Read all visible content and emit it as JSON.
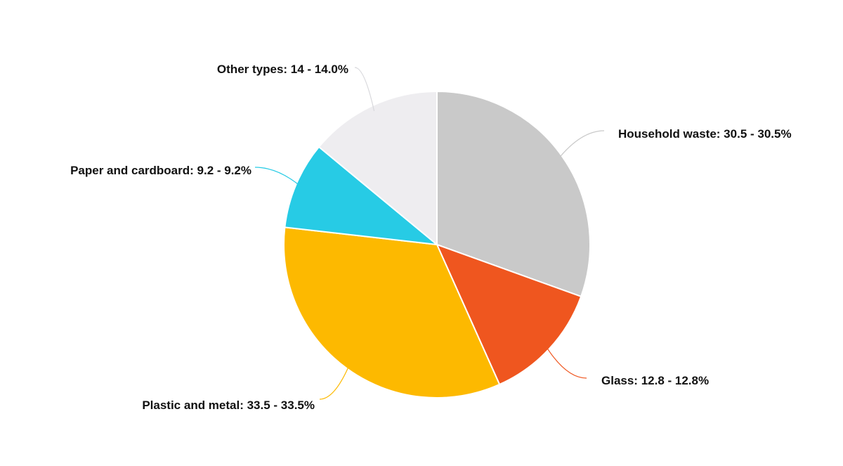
{
  "chart_data": {
    "type": "pie",
    "title": "",
    "legend": "none",
    "slices": [
      {
        "name": "Household waste",
        "value": 30.5,
        "percent": "30.5%",
        "label": "Household waste: 30.5 - 30.5%",
        "color": "#c9c9c9"
      },
      {
        "name": "Glass",
        "value": 12.8,
        "percent": "12.8%",
        "label": "Glass: 12.8 - 12.8%",
        "color": "#ef561f"
      },
      {
        "name": "Plastic and metal",
        "value": 33.5,
        "percent": "33.5%",
        "label": "Plastic and metal: 33.5 - 33.5%",
        "color": "#fdb900"
      },
      {
        "name": "Paper and cardboard",
        "value": 9.2,
        "percent": "9.2%",
        "label": "Paper and cardboard: 9.2 - 9.2%",
        "color": "#27cbe5"
      },
      {
        "name": "Other types",
        "value": 14,
        "percent": "14.0%",
        "label": "Other types: 14 - 14.0%",
        "color": "#eeedf0"
      }
    ]
  }
}
